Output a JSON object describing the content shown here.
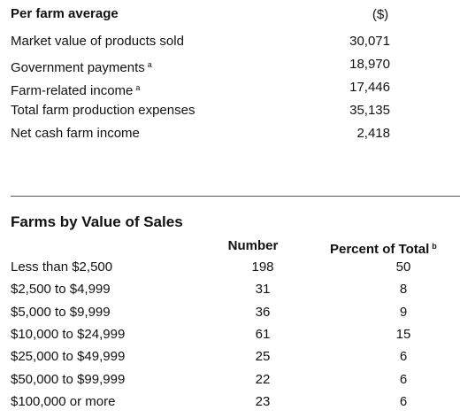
{
  "per_farm": {
    "title": "Per farm average",
    "unit": "($)",
    "rows": [
      {
        "label": "Market value of products sold",
        "value": "30,071"
      },
      {
        "label": "Government payments",
        "note": "a",
        "value": "18,970"
      },
      {
        "label": "Farm-related income",
        "note": "a",
        "value": "17,446"
      },
      {
        "label": "Total farm production expenses",
        "value": "35,135"
      },
      {
        "label": "Net cash farm income",
        "value": "2,418"
      }
    ]
  },
  "sales": {
    "title": "Farms by Value of Sales",
    "columns": [
      "Number",
      "Percent of Total"
    ],
    "column_note": "b",
    "rows": [
      [
        "Less than $2,500",
        "198",
        "50"
      ],
      [
        "$2,500 to $4,999",
        "31",
        "8"
      ],
      [
        "$5,000 to $9,999",
        "36",
        "9"
      ],
      [
        "$10,000 to $24,999",
        "61",
        "15"
      ],
      [
        "$25,000 to $49,999",
        "25",
        "6"
      ],
      [
        "$50,000 to $99,999",
        "22",
        "6"
      ],
      [
        "$100,000 or more",
        "23",
        "6"
      ]
    ]
  }
}
